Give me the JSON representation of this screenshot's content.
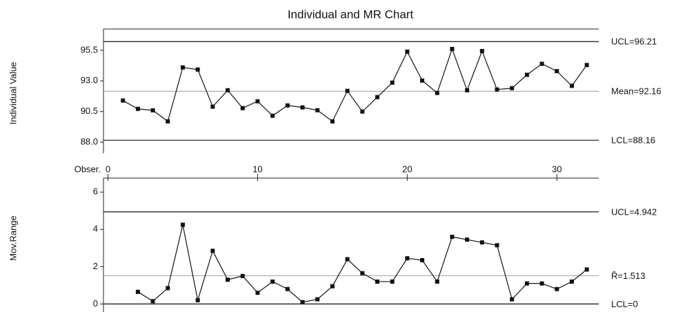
{
  "chart_data": [
    {
      "type": "line",
      "title": "Individual and MR Chart",
      "ylabel": "Individual Value",
      "xlabel": "Obser.",
      "x": [
        1,
        2,
        3,
        4,
        5,
        6,
        7,
        8,
        9,
        10,
        11,
        12,
        13,
        14,
        15,
        16,
        17,
        18,
        19,
        20,
        21,
        22,
        23,
        24,
        25,
        26,
        27,
        28,
        29,
        30,
        31,
        32
      ],
      "series": [
        {
          "color": "#111111",
          "values": [
            91.4,
            90.72,
            90.6,
            89.7,
            94.1,
            93.93,
            90.9,
            92.24,
            90.78,
            91.34,
            90.16,
            91.0,
            90.84,
            90.61,
            89.7,
            92.19,
            90.5,
            91.68,
            92.86,
            95.39,
            93.03,
            92.02,
            95.61,
            92.24,
            95.44,
            92.3,
            92.41,
            93.5,
            94.4,
            93.8,
            92.6,
            94.3
          ]
        }
      ],
      "xlim": [
        -0.3,
        32.8
      ],
      "xticks": [
        0,
        10,
        20,
        30
      ],
      "ylim": [
        87.1,
        97.24
      ],
      "yticks": [
        {
          "value": 88,
          "label": "88.0"
        },
        90.5,
        {
          "value": 93,
          "label": "93.0"
        },
        95.5
      ],
      "control_lines": [
        {
          "label": "UCL=96.21",
          "value": 96.21
        },
        {
          "label": "Mean=92.16",
          "value": 92.16
        },
        {
          "label": "LCL=88.16",
          "value": 88.16
        }
      ]
    },
    {
      "type": "line",
      "ylabel": "Mov.Range",
      "x": [
        2,
        3,
        4,
        5,
        6,
        7,
        8,
        9,
        10,
        11,
        12,
        13,
        14,
        15,
        16,
        17,
        18,
        19,
        20,
        21,
        22,
        23,
        24,
        25,
        26,
        27,
        28,
        29,
        30,
        31,
        32
      ],
      "series": [
        {
          "color": "#111111",
          "values": [
            0.65,
            0.15,
            0.85,
            4.25,
            0.2,
            2.85,
            1.3,
            1.5,
            0.6,
            1.2,
            0.8,
            0.1,
            0.25,
            0.95,
            2.4,
            1.65,
            1.2,
            1.2,
            2.45,
            2.35,
            1.2,
            3.6,
            3.45,
            3.3,
            3.15,
            0.25,
            1.1,
            1.1,
            0.8,
            1.2,
            1.85
          ]
        }
      ],
      "xlim": [
        -0.3,
        32.8
      ],
      "ylim": [
        -0.43,
        6.75
      ],
      "yticks": [
        0,
        2,
        4,
        6
      ],
      "control_lines": [
        {
          "label": "UCL=4.942",
          "value": 4.942
        },
        {
          "label": "R̄=1.513",
          "value": 1.513
        },
        {
          "label": "LCL=0",
          "value": 0
        }
      ]
    }
  ]
}
